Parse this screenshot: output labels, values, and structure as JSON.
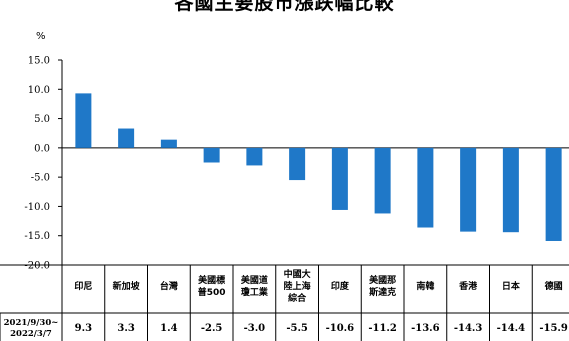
{
  "chart_data": {
    "type": "bar",
    "title": "各國主要股市漲跌幅比較",
    "unit_label": "%",
    "ylim": [
      -20,
      15
    ],
    "yticks": [
      "15.0",
      "10.0",
      "5.0",
      "0.0",
      "-5.0",
      "-10.0",
      "-15.0",
      "-20.0"
    ],
    "categories": [
      [
        "印尼"
      ],
      [
        "新加坡"
      ],
      [
        "台灣"
      ],
      [
        "美國標",
        "普500"
      ],
      [
        "美國道",
        "瓊工業"
      ],
      [
        "中國大",
        "陸上海",
        "綜合"
      ],
      [
        "印度"
      ],
      [
        "美國那",
        "斯達克"
      ],
      [
        "南韓"
      ],
      [
        "香港"
      ],
      [
        "日本"
      ],
      [
        "德國"
      ]
    ],
    "series": [
      {
        "name": "2021/9/30~2022/3/7",
        "name_lines": [
          "2021/9/30~",
          "2022/3/7"
        ],
        "values": [
          9.3,
          3.3,
          1.4,
          -2.5,
          -3.0,
          -5.5,
          -10.6,
          -11.2,
          -13.6,
          -14.3,
          -14.4,
          -15.9
        ],
        "labels": [
          "9.3",
          "3.3",
          "1.4",
          "-2.5",
          "-3.0",
          "-5.5",
          "-10.6",
          "-11.2",
          "-13.6",
          "-14.3",
          "-14.4",
          "-15.9"
        ]
      }
    ],
    "bar_color": "#1f78c8",
    "grid": false
  }
}
